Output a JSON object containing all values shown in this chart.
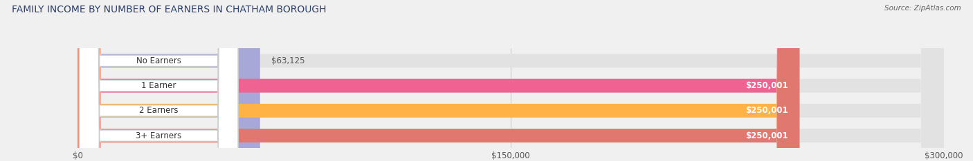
{
  "title": "FAMILY INCOME BY NUMBER OF EARNERS IN CHATHAM BOROUGH",
  "source": "Source: ZipAtlas.com",
  "categories": [
    "No Earners",
    "1 Earner",
    "2 Earners",
    "3+ Earners"
  ],
  "values": [
    63125,
    250001,
    250001,
    250001
  ],
  "bar_colors": [
    "#a8a8d8",
    "#f06292",
    "#ffb347",
    "#e07870"
  ],
  "label_colors": [
    "#555555",
    "#ffffff",
    "#ffffff",
    "#ffffff"
  ],
  "value_labels": [
    "$63,125",
    "$250,001",
    "$250,001",
    "$250,001"
  ],
  "xlim": [
    0,
    300000
  ],
  "xticklabels": [
    "$0",
    "$150,000",
    "$300,000"
  ],
  "background_color": "#f0f0f0",
  "bar_background_color": "#e2e2e2",
  "title_fontsize": 10,
  "title_color": "#2c3e6b",
  "source_fontsize": 7.5,
  "source_color": "#666666",
  "bar_height": 0.55,
  "label_fontsize": 8.5
}
